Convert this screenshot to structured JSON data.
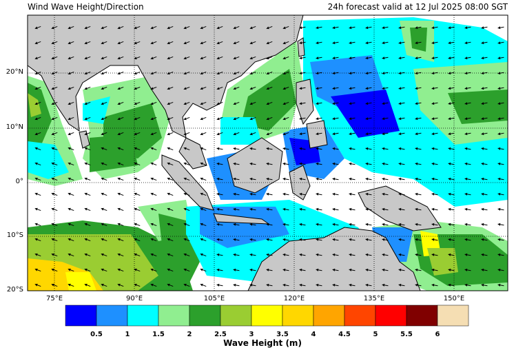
{
  "title_left": "Wind Wave Height/Direction",
  "title_right": "24h forecast valid at 12 Jul 2025 08:00 SGT",
  "lat_labels": [
    "20°N",
    "10°N",
    "0°",
    "10°S",
    "20°S"
  ],
  "lon_labels": [
    "75°E",
    "90°E",
    "105°E",
    "120°E",
    "135°E",
    "150°E"
  ],
  "colorbar": {
    "colors": [
      "#0000ff",
      "#1e90ff",
      "#00ffff",
      "#90ee90",
      "#2ca02c",
      "#9acd32",
      "#ffff00",
      "#ffd700",
      "#ffa500",
      "#ff4500",
      "#ff0000",
      "#800000",
      "#f5deb3"
    ],
    "tick_labels": [
      "0.5",
      "1",
      "1.5",
      "2",
      "2.5",
      "3",
      "3.5",
      "4",
      "4.5",
      "5",
      "5.5",
      "6"
    ],
    "title": "Wave Height (m)"
  },
  "colors": {
    "land": "#c8c8c8",
    "ocean_calm": "#ffffff"
  }
}
